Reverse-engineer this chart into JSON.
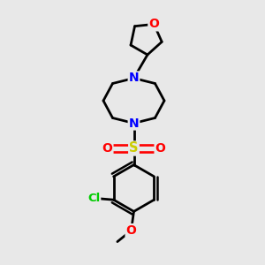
{
  "bg_color": "#e8e8e8",
  "bond_color": "#000000",
  "bond_width": 2.0,
  "atom_colors": {
    "N": "#0000ff",
    "O": "#ff0000",
    "S": "#cccc00",
    "Cl": "#00cc00",
    "O_methoxy": "#ff0000",
    "O_sulfonyl": "#ff0000"
  },
  "figsize": [
    3.0,
    3.0
  ],
  "dpi": 100
}
